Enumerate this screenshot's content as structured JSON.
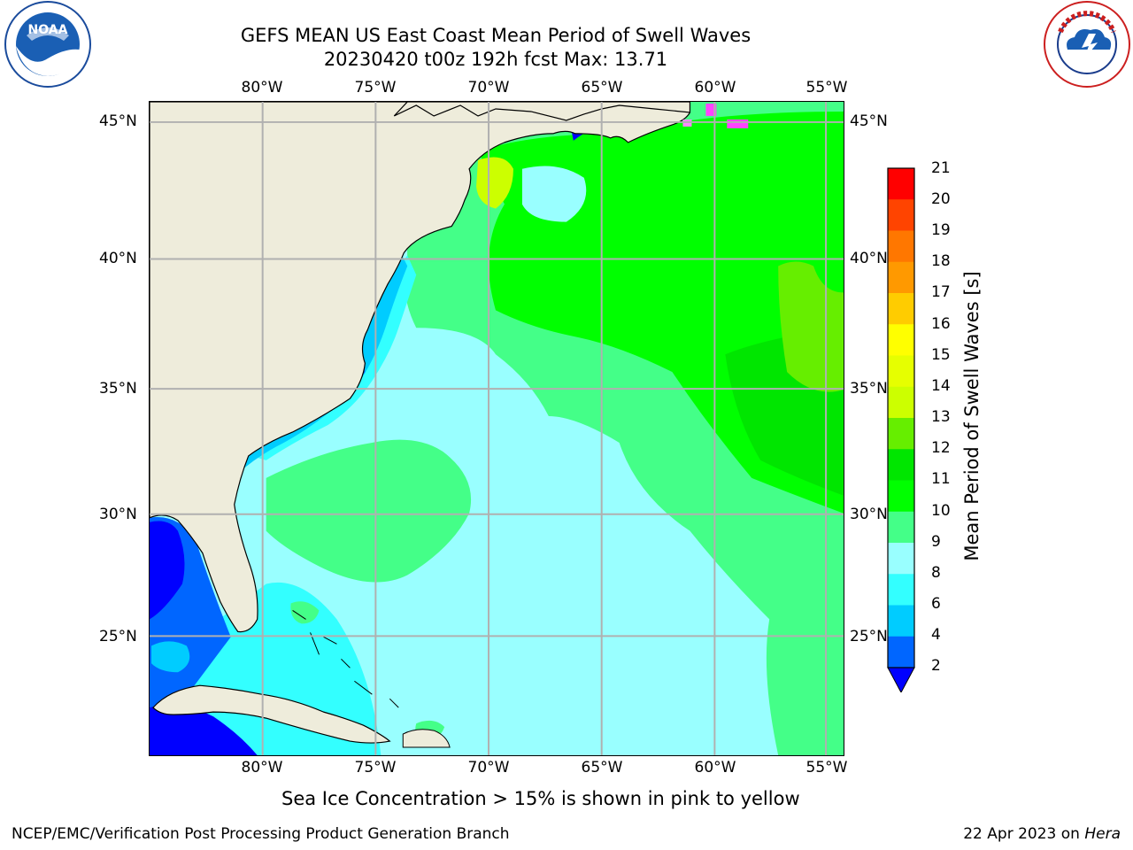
{
  "header": {
    "title_line1": "GEFS MEAN US East Coast Mean Period of Swell Waves",
    "title_line2": "20230420 t00z 192h fcst   Max: 13.71"
  },
  "logos": {
    "noaa": {
      "text": "NOAA",
      "ring_text": "NATIONAL OCEANIC AND ATMOSPHERIC ADMINISTRATION · U.S. DEPARTMENT OF COMMERCE"
    },
    "nws": {
      "ring_text": "NATIONAL WEATHER SERVICE"
    }
  },
  "map": {
    "lon_ticks": [
      "80°W",
      "75°W",
      "70°W",
      "65°W",
      "60°W",
      "55°W"
    ],
    "lat_ticks_left": [
      "45°N",
      "40°N",
      "35°N",
      "30°N",
      "25°N"
    ],
    "lat_ticks_right": [
      "45°N",
      "40°N",
      "35°N",
      "30°N",
      "25°N"
    ],
    "lon_values": [
      -80,
      -75,
      -70,
      -65,
      -60,
      -55
    ],
    "lat_values": [
      45,
      40,
      35,
      30,
      25
    ],
    "extent": {
      "lon_min": -85,
      "lon_max": -54.2,
      "lat_min": 20.5,
      "lat_max": 45.8
    },
    "grid": true,
    "land_color": "#eeecdb",
    "grid_color": "#b0b0b0"
  },
  "colorbar": {
    "title": "Mean Period of Swell Waves [s]",
    "labels": [
      "21",
      "20",
      "19",
      "18",
      "17",
      "16",
      "15",
      "14",
      "13",
      "12",
      "11",
      "10",
      "9",
      "8",
      "6",
      "4",
      "2"
    ],
    "bins": [
      {
        "low": 2,
        "high": 4,
        "color": "#0066ff"
      },
      {
        "low": 4,
        "high": 6,
        "color": "#00ccff"
      },
      {
        "low": 6,
        "high": 8,
        "color": "#33ffff"
      },
      {
        "low": 8,
        "high": 9,
        "color": "#99ffff"
      },
      {
        "low": 9,
        "high": 10,
        "color": "#44ff88"
      },
      {
        "low": 10,
        "high": 11,
        "color": "#00ff00"
      },
      {
        "low": 11,
        "high": 12,
        "color": "#00e600"
      },
      {
        "low": 12,
        "high": 13,
        "color": "#66ee00"
      },
      {
        "low": 13,
        "high": 14,
        "color": "#ccff00"
      },
      {
        "low": 14,
        "high": 15,
        "color": "#e6ff00"
      },
      {
        "low": 15,
        "high": 16,
        "color": "#ffff00"
      },
      {
        "low": 16,
        "high": 17,
        "color": "#ffcc00"
      },
      {
        "low": 17,
        "high": 18,
        "color": "#ff9900"
      },
      {
        "low": 18,
        "high": 19,
        "color": "#ff7700"
      },
      {
        "low": 19,
        "high": 20,
        "color": "#ff4400"
      },
      {
        "low": 20,
        "high": 21,
        "color": "#ff0000"
      }
    ],
    "under_color": "#0000ff"
  },
  "footer": {
    "sea_ice_note": "Sea Ice Concentration > 15% is shown in pink to yellow",
    "branch": "NCEP/EMC/Verification Post Processing Product Generation Branch",
    "date_text": "22 Apr 2023 on ",
    "host": "Hera"
  }
}
